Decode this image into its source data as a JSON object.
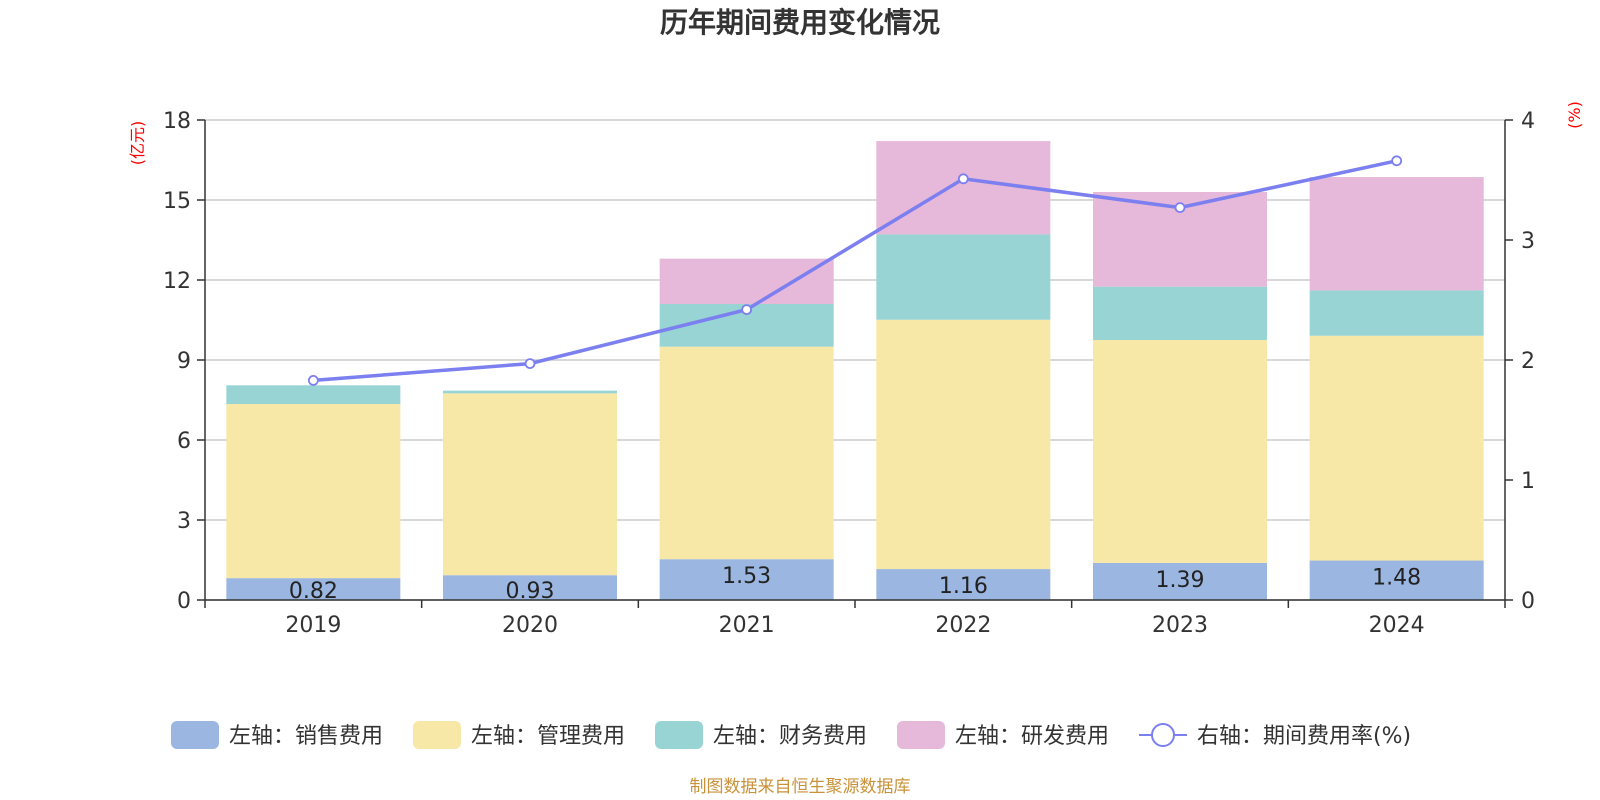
{
  "chart_data": {
    "type": "bar",
    "title": "历年期间费用变化情况",
    "categories": [
      "2019",
      "2020",
      "2021",
      "2022",
      "2023",
      "2024"
    ],
    "left_axis": {
      "unit": "(亿元)",
      "ylim": [
        0,
        18
      ],
      "ticks": [
        "0",
        "3",
        "6",
        "9",
        "12",
        "15",
        "18"
      ]
    },
    "right_axis": {
      "unit": "(%)",
      "ylim": [
        0,
        4
      ],
      "ticks": [
        "0",
        "1",
        "2",
        "3",
        "4"
      ]
    },
    "stacked": true,
    "series": [
      {
        "name": "左轴：销售费用",
        "axis": "left",
        "color": "#9bb7e1",
        "values": [
          0.82,
          0.93,
          1.53,
          1.16,
          1.39,
          1.48
        ],
        "labels": [
          "0.82",
          "0.93",
          "1.53",
          "1.16",
          "1.39",
          "1.48"
        ]
      },
      {
        "name": "左轴：管理费用",
        "axis": "left",
        "color": "#f7e8a8",
        "values": [
          6.53,
          6.82,
          7.97,
          9.35,
          8.36,
          8.43
        ]
      },
      {
        "name": "左轴：财务费用",
        "axis": "left",
        "color": "#98d4d4",
        "values": [
          0.7,
          0.1,
          1.6,
          3.2,
          2.0,
          1.7
        ]
      },
      {
        "name": "左轴：研发费用",
        "axis": "left",
        "color": "#e6b8d9",
        "values": [
          0,
          0,
          1.7,
          3.5,
          3.55,
          4.25
        ]
      },
      {
        "name": "右轴：期间费用率(%)",
        "axis": "right",
        "type": "line",
        "color": "#7b7ff0",
        "values": [
          1.83,
          1.97,
          2.42,
          3.51,
          3.27,
          3.66
        ]
      }
    ],
    "grid": true,
    "legend_position": "bottom"
  },
  "footer": {
    "source": "制图数据来自恒生聚源数据库"
  }
}
